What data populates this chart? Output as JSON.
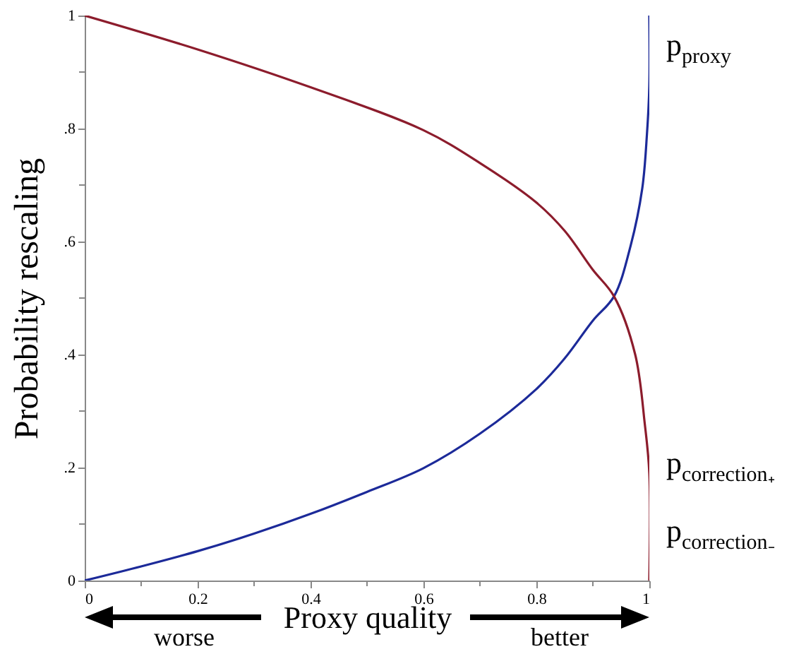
{
  "chart_data": {
    "type": "line",
    "xlabel": "Proxy quality",
    "ylabel": "Probability rescaling",
    "xlim": [
      0,
      1
    ],
    "ylim": [
      0,
      1
    ],
    "xticks": [
      0,
      {
        "value": 0.1,
        "label": null
      },
      0.2,
      {
        "value": 0.3,
        "label": null
      },
      0.4,
      {
        "value": 0.5,
        "label": null
      },
      0.6,
      {
        "value": 0.7,
        "label": null
      },
      0.8,
      {
        "value": 0.9,
        "label": null
      },
      1
    ],
    "yticks": [
      0,
      {
        "value": 0.1,
        "label": null
      },
      {
        "value": 0.2,
        "label": ".2"
      },
      {
        "value": 0.3,
        "label": null
      },
      {
        "value": 0.4,
        "label": ".4"
      },
      {
        "value": 0.5,
        "label": null
      },
      {
        "value": 0.6,
        "label": ".6"
      },
      {
        "value": 0.7,
        "label": null
      },
      {
        "value": 0.8,
        "label": ".8"
      },
      {
        "value": 0.9,
        "label": null
      },
      1
    ],
    "grid": false,
    "line_style": "solid",
    "marker": "none",
    "series": [
      {
        "name": "p$_{proxy}$",
        "color": "#1c2a99",
        "x": [
          0,
          0.1,
          0.2,
          0.3,
          0.4,
          0.5,
          0.6,
          0.7,
          0.8,
          0.85,
          0.9,
          0.9375,
          0.967,
          0.9875,
          0.9958,
          1,
          1
        ],
        "values": [
          0,
          0.025,
          0.052,
          0.083,
          0.118,
          0.157,
          0.199,
          0.26,
          0.339,
          0.393,
          0.46,
          0.503,
          0.593,
          0.694,
          0.79,
          0.875,
          1
        ]
      },
      {
        "color": "#8c1c2c",
        "x": [
          0,
          0.2,
          0.4,
          0.6,
          0.7,
          0.8,
          0.85,
          0.9,
          0.9375,
          0.975,
          0.992,
          1,
          1
        ],
        "values": [
          1,
          0.94,
          0.873,
          0.797,
          0.739,
          0.669,
          0.619,
          0.55,
          0.503,
          0.4,
          0.277,
          0.19,
          0
        ]
      }
    ],
    "annotations": [
      {
        "text": "p$_{correction₊}$",
        "x": 1,
        "y": 0.2
      },
      {
        "text": "p$_{correction₋}$",
        "x": 1,
        "y": 0.08
      },
      "worse",
      "better"
    ]
  }
}
